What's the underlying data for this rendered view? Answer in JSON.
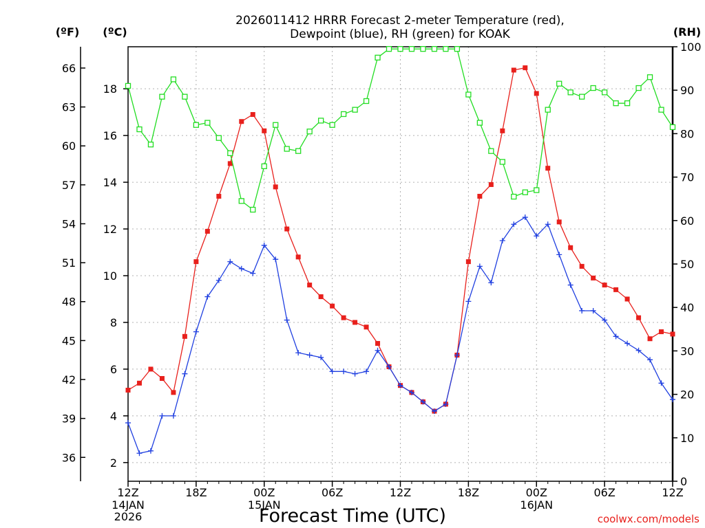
{
  "chart_data": {
    "type": "line",
    "title_line1": "2026011412 HRRR Forecast 2-meter Temperature (red),",
    "title_line2": "Dewpoint (blue), RH (green) for KOAK",
    "xlabel": "Forecast Time (UTC)",
    "credit": "coolwx.com/models",
    "units": {
      "fahrenheit": "(ºF)",
      "celsius": "(ºC)",
      "rh": "(RH)"
    },
    "x_range_hours": [
      0,
      48
    ],
    "celsius_range": [
      1.2,
      19.8
    ],
    "rh_range": [
      0,
      100
    ],
    "celsius_ticks": [
      2,
      4,
      6,
      8,
      10,
      12,
      14,
      16,
      18
    ],
    "fahrenheit_ticks": [
      {
        "value": 36,
        "label": "36"
      },
      {
        "value": 39,
        "label": "39"
      },
      {
        "value": 42,
        "label": "42"
      },
      {
        "value": 45,
        "label": "45"
      },
      {
        "value": 48,
        "label": "48"
      },
      {
        "value": 51,
        "label": "51"
      },
      {
        "value": 54,
        "label": "54"
      },
      {
        "value": 57,
        "label": "57"
      },
      {
        "value": 60,
        "label": "60"
      },
      {
        "value": 63,
        "label": "63"
      },
      {
        "value": 66,
        "label": "66"
      }
    ],
    "rh_ticks": [
      0,
      10,
      20,
      30,
      40,
      50,
      60,
      70,
      80,
      90,
      100
    ],
    "x_ticks": [
      {
        "hour": 0,
        "label": "12Z",
        "sub1": "14JAN",
        "sub2": "2026"
      },
      {
        "hour": 6,
        "label": "18Z"
      },
      {
        "hour": 12,
        "label": "00Z",
        "sub1": "15JAN"
      },
      {
        "hour": 18,
        "label": "06Z"
      },
      {
        "hour": 24,
        "label": "12Z"
      },
      {
        "hour": 30,
        "label": "18Z"
      },
      {
        "hour": 36,
        "label": "00Z",
        "sub1": "16JAN"
      },
      {
        "hour": 42,
        "label": "06Z"
      },
      {
        "hour": 48,
        "label": "12Z"
      }
    ],
    "grid": true,
    "series": [
      {
        "name": "Temperature",
        "color": "#e8201c",
        "marker": "filled-square",
        "axis": "celsius",
        "values": [
          5.1,
          5.4,
          6.0,
          5.6,
          5.0,
          7.4,
          10.6,
          11.9,
          13.4,
          14.8,
          16.6,
          16.9,
          16.2,
          13.8,
          12.0,
          10.8,
          9.6,
          9.1,
          8.7,
          8.2,
          8.0,
          7.8,
          7.1,
          6.1,
          5.3,
          5.0,
          4.6,
          4.2,
          4.5,
          6.6,
          10.6,
          13.4,
          13.9,
          16.2,
          18.8,
          18.9,
          17.8,
          14.6,
          12.3,
          11.2,
          10.4,
          9.9,
          9.6,
          9.4,
          9.0,
          8.2,
          7.3,
          7.6,
          7.5
        ]
      },
      {
        "name": "Dewpoint",
        "color": "#1f3fe0",
        "marker": "plus",
        "axis": "celsius",
        "values": [
          3.7,
          2.4,
          2.5,
          4.0,
          4.0,
          5.8,
          7.6,
          9.1,
          9.8,
          10.6,
          10.3,
          10.1,
          11.3,
          10.7,
          8.1,
          6.7,
          6.6,
          6.5,
          5.9,
          5.9,
          5.8,
          5.9,
          6.8,
          6.1,
          5.3,
          5.0,
          4.6,
          4.2,
          4.5,
          6.6,
          8.9,
          10.4,
          9.7,
          11.5,
          12.2,
          12.5,
          11.7,
          12.2,
          10.9,
          9.6,
          8.5,
          8.5,
          8.1,
          7.4,
          7.1,
          6.8,
          6.4,
          5.4,
          4.7
        ]
      },
      {
        "name": "RH",
        "color": "#22dd22",
        "marker": "open-square",
        "axis": "rh",
        "values": [
          91,
          81,
          77.5,
          88.5,
          92.5,
          88.5,
          82,
          82.5,
          79,
          75.5,
          64.5,
          62.5,
          72.5,
          82,
          76.5,
          76,
          80.5,
          83,
          82,
          84.5,
          85.5,
          87.5,
          97.5,
          99.5,
          99.5,
          99.5,
          99.5,
          99.5,
          99.5,
          99.5,
          89,
          82.5,
          76,
          73.5,
          65.5,
          66.5,
          67,
          85.5,
          91.5,
          89.5,
          88.5,
          90.5,
          89.5,
          87,
          87,
          90.5,
          93,
          85.5,
          81.5
        ]
      }
    ]
  }
}
